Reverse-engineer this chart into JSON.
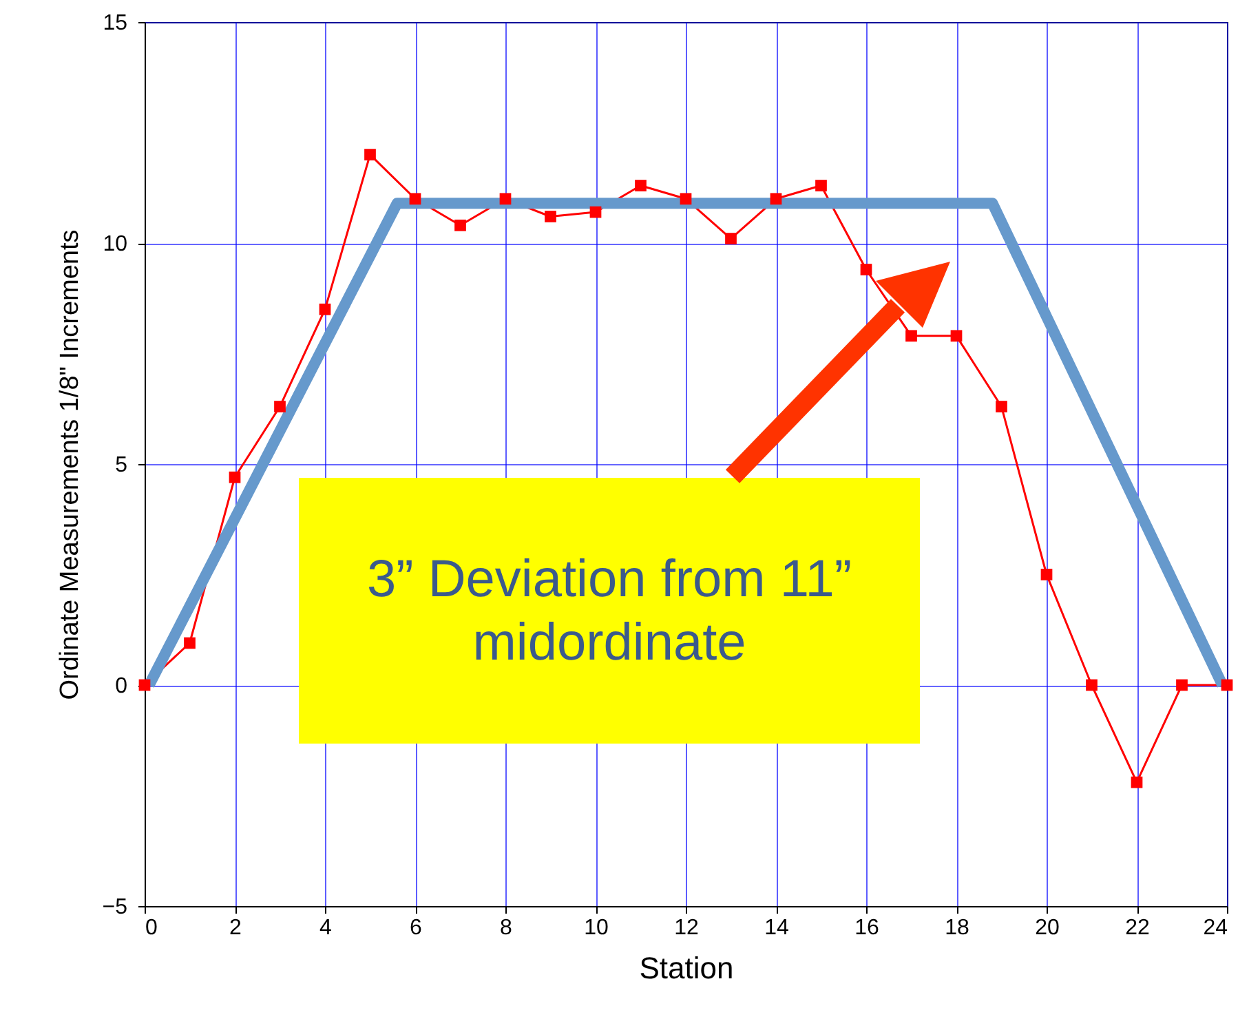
{
  "chart_data": {
    "type": "line",
    "xlabel": "Station",
    "ylabel": "Ordinate Measurements 1/8\" Increments",
    "xlim": [
      0,
      24
    ],
    "xticks": [
      0,
      2,
      4,
      6,
      8,
      10,
      12,
      14,
      16,
      18,
      20,
      22,
      24
    ],
    "ylim": [
      -5,
      15
    ],
    "yticks": [
      -5,
      0,
      5,
      10,
      15
    ],
    "grid": true,
    "marker": "square",
    "x": [
      0,
      1,
      2,
      3,
      4,
      5,
      6,
      7,
      8,
      9,
      10,
      11,
      12,
      13,
      14,
      15,
      16,
      17,
      18,
      19,
      20,
      21,
      22,
      23,
      24
    ],
    "series": [
      {
        "color": "#ff0000",
        "values": [
          0,
          0.95,
          4.7,
          6.3,
          8.5,
          12.0,
          11.0,
          10.4,
          11.0,
          10.6,
          10.7,
          11.3,
          11.0,
          10.1,
          11.0,
          11.3,
          9.4,
          7.9,
          7.9,
          6.3,
          2.5,
          0,
          -2.2,
          0,
          0
        ]
      },
      {
        "color": "#6699cc",
        "marker": "none",
        "x": [
          0.1,
          5.6,
          18.8,
          23.9
        ],
        "values": [
          0,
          10.9,
          10.9,
          0
        ]
      }
    ],
    "annotations": [
      "3” Deviation from 11” midordinate"
    ]
  }
}
